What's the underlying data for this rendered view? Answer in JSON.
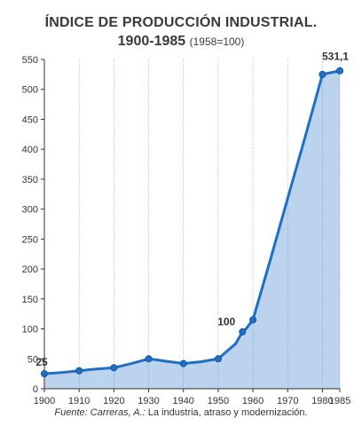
{
  "chart_data": {
    "type": "area",
    "title": "ÍNDICE DE PRODUCCIÓN INDUSTRIAL.",
    "subtitle_years": "1900-1985",
    "subtitle_base": "(1958=100)",
    "x": [
      1900,
      1905,
      1910,
      1915,
      1920,
      1925,
      1930,
      1935,
      1940,
      1945,
      1950,
      1955,
      1957,
      1958,
      1960,
      1965,
      1970,
      1975,
      1980,
      1985
    ],
    "values": [
      25,
      27,
      30,
      33,
      35,
      42,
      50,
      46,
      42,
      45,
      50,
      75,
      95,
      100,
      115,
      215,
      318,
      420,
      525,
      531.1
    ],
    "xticks": [
      1900,
      1910,
      1920,
      1930,
      1940,
      1950,
      1960,
      1970,
      1980,
      1985
    ],
    "yticks": [
      0,
      50,
      100,
      150,
      200,
      250,
      300,
      350,
      400,
      450,
      500,
      550
    ],
    "ylim": [
      0,
      550
    ],
    "xlim": [
      1900,
      1985
    ],
    "grid": "vertical",
    "annotations": [
      {
        "text": "25",
        "x": 1900,
        "y": 25
      },
      {
        "text": "100",
        "x": 1958,
        "y": 100
      },
      {
        "text": "531,1",
        "x": 1985,
        "y": 531.1
      }
    ],
    "line_color": "#1f6fc4",
    "fill_color": "#bcd3ef"
  },
  "source": {
    "author": "Fuente: Carreras, A.:",
    "work": "La industria, atraso y modernización."
  }
}
